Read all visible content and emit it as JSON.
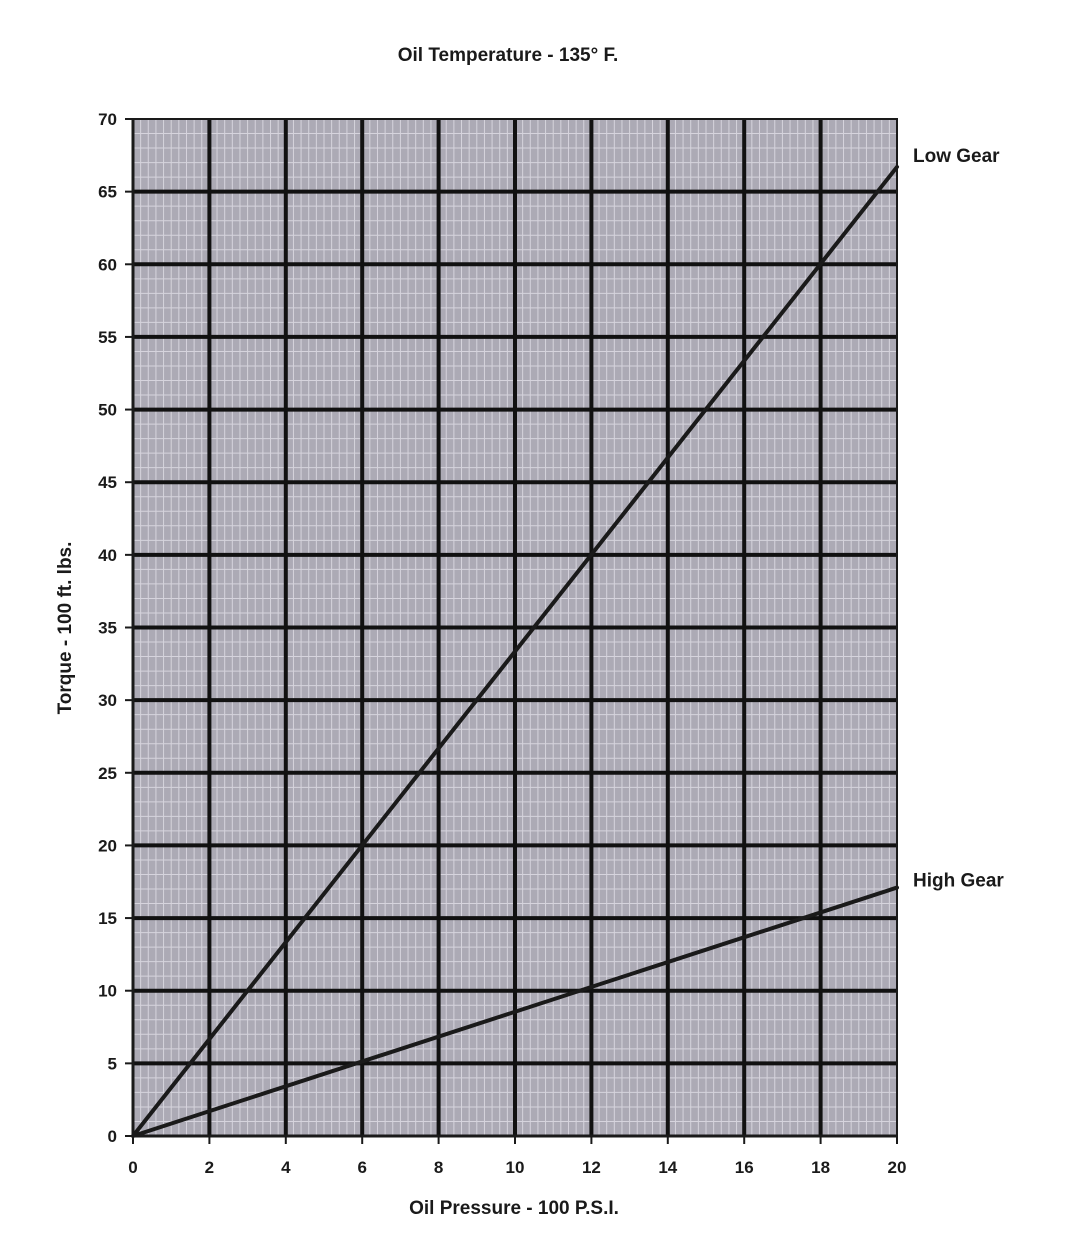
{
  "chart_data": {
    "type": "line",
    "title": "Oil Temperature - 135°  F.",
    "xlabel": "Oil Pressure - 100 P.S.I.",
    "ylabel": "Torque - 100 ft. lbs.",
    "xlim": [
      0,
      20
    ],
    "ylim": [
      0,
      70
    ],
    "x_ticks": [
      0,
      2,
      4,
      6,
      8,
      10,
      12,
      14,
      16,
      18,
      20
    ],
    "y_ticks": [
      0,
      5,
      10,
      15,
      20,
      25,
      30,
      35,
      40,
      45,
      50,
      55,
      60,
      65,
      70
    ],
    "grid": true,
    "minor_grid": true,
    "plot_background": "#acaab5",
    "major_grid_color": "#111111",
    "minor_grid_color": "#d6d4dd",
    "line_color": "#1a1a1a",
    "legend": "none (series labelled at line ends, right)",
    "series": [
      {
        "name": "Low Gear",
        "x": [
          0,
          20
        ],
        "y": [
          0,
          66.7
        ]
      },
      {
        "name": "High Gear",
        "x": [
          0,
          20
        ],
        "y": [
          0,
          17.1
        ]
      }
    ]
  }
}
